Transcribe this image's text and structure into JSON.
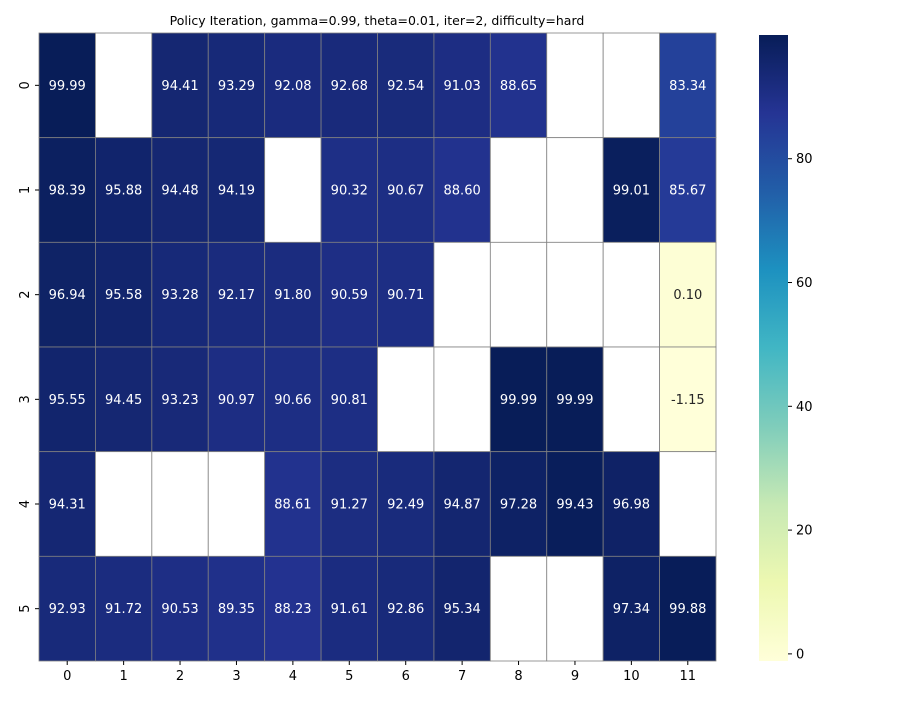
{
  "chart_data": {
    "type": "heatmap",
    "title": "Policy Iteration, gamma=0.99, theta=0.01, iter=2, difficulty=hard",
    "xlabel": "",
    "ylabel": "",
    "x_ticks": [
      "0",
      "1",
      "2",
      "3",
      "4",
      "5",
      "6",
      "7",
      "8",
      "9",
      "10",
      "11"
    ],
    "y_ticks": [
      "0",
      "1",
      "2",
      "3",
      "4",
      "5"
    ],
    "values": [
      [
        99.99,
        null,
        94.41,
        93.29,
        92.08,
        92.68,
        92.54,
        91.03,
        88.65,
        null,
        null,
        83.34
      ],
      [
        98.39,
        95.88,
        94.48,
        94.19,
        null,
        90.32,
        90.67,
        88.6,
        null,
        null,
        99.01,
        85.67
      ],
      [
        96.94,
        95.58,
        93.28,
        92.17,
        91.8,
        90.59,
        90.71,
        null,
        null,
        null,
        null,
        0.1
      ],
      [
        95.55,
        94.45,
        93.23,
        90.97,
        90.66,
        90.81,
        null,
        null,
        99.99,
        99.99,
        null,
        -1.15
      ],
      [
        94.31,
        null,
        null,
        null,
        88.61,
        91.27,
        92.49,
        94.87,
        97.28,
        99.43,
        96.98,
        null
      ],
      [
        92.93,
        91.72,
        90.53,
        89.35,
        88.23,
        91.61,
        92.86,
        95.34,
        null,
        null,
        97.34,
        99.88
      ]
    ],
    "colormap": "YlGnBu",
    "colorbar": {
      "vmin": -1.15,
      "vmax": 99.99,
      "ticks": [
        0,
        20,
        40,
        60,
        80
      ]
    },
    "grid": true,
    "annotations": "cell values with 2 decimals"
  }
}
